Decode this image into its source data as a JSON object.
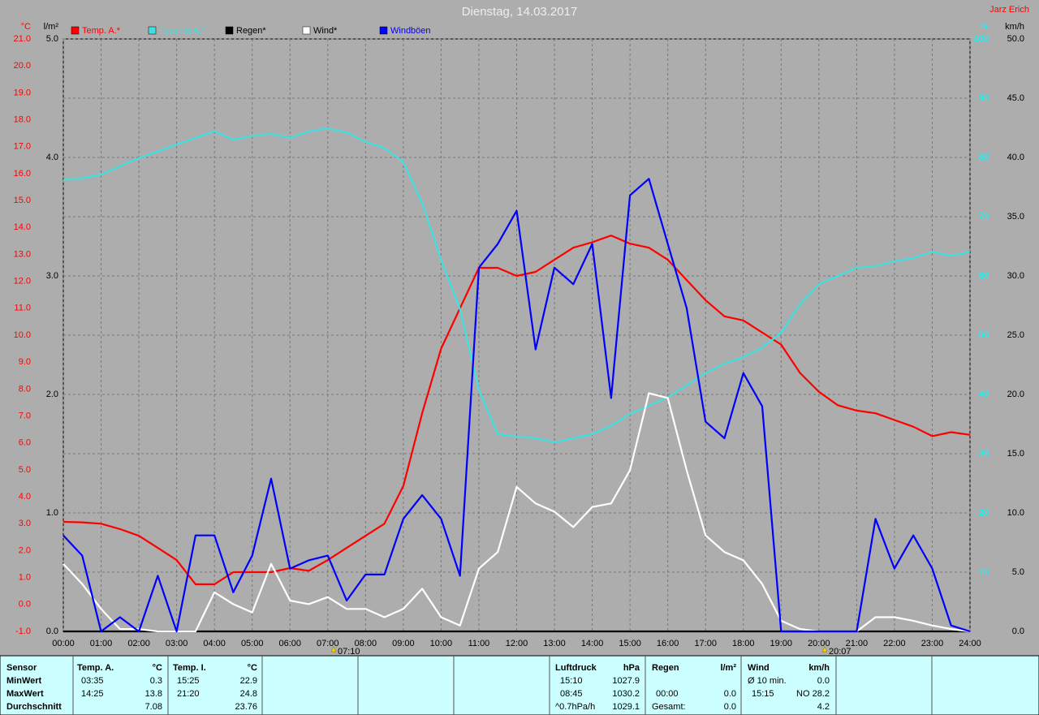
{
  "chart_data": {
    "type": "line",
    "title": "Dienstag, 14.03.2017",
    "author": "Jarz Erich",
    "x": [
      0,
      0.5,
      1,
      1.5,
      2,
      2.5,
      3,
      3.5,
      4,
      4.5,
      5,
      5.5,
      6,
      6.5,
      7,
      7.5,
      8,
      8.5,
      9,
      9.5,
      10,
      10.5,
      11,
      11.5,
      12,
      12.5,
      13,
      13.5,
      14,
      14.5,
      15,
      15.5,
      16,
      16.5,
      17,
      17.5,
      18,
      18.5,
      19,
      19.5,
      20,
      20.5,
      21,
      21.5,
      22,
      22.5,
      23,
      23.5,
      24
    ],
    "xlim": [
      0,
      24
    ],
    "xticks": [
      {
        "value": 0,
        "label": "00:00"
      },
      {
        "value": 1,
        "label": "01:00"
      },
      {
        "value": 2,
        "label": "02:00"
      },
      {
        "value": 3,
        "label": "03:00"
      },
      {
        "value": 4,
        "label": "04:00"
      },
      {
        "value": 5,
        "label": "05:00"
      },
      {
        "value": 6,
        "label": "06:00"
      },
      {
        "value": 7,
        "label": "07:00"
      },
      {
        "value": 8,
        "label": "08:00"
      },
      {
        "value": 9,
        "label": "09:00"
      },
      {
        "value": 10,
        "label": "10:00"
      },
      {
        "value": 11,
        "label": "11:00"
      },
      {
        "value": 12,
        "label": "12:00"
      },
      {
        "value": 13,
        "label": "13:00"
      },
      {
        "value": 14,
        "label": "14:00"
      },
      {
        "value": 15,
        "label": "15:00"
      },
      {
        "value": 16,
        "label": "16:00"
      },
      {
        "value": 17,
        "label": "17:00"
      },
      {
        "value": 18,
        "label": "18:00"
      },
      {
        "value": 19,
        "label": "19:00"
      },
      {
        "value": 20,
        "label": "20:00"
      },
      {
        "value": 21,
        "label": "21:00"
      },
      {
        "value": 22,
        "label": "22:00"
      },
      {
        "value": 23,
        "label": "23:00"
      },
      {
        "value": 24,
        "label": "24:00"
      }
    ],
    "axes": {
      "temp": {
        "label": "°C",
        "color": "#ff0000",
        "lim": [
          -1,
          21
        ],
        "ticks": [
          {
            "value": -1,
            "label": "-1.0"
          },
          {
            "value": 0,
            "label": "0.0"
          },
          {
            "value": 1,
            "label": "1.0"
          },
          {
            "value": 2,
            "label": "2.0"
          },
          {
            "value": 3,
            "label": "3.0"
          },
          {
            "value": 4,
            "label": "4.0"
          },
          {
            "value": 5,
            "label": "5.0"
          },
          {
            "value": 6,
            "label": "6.0"
          },
          {
            "value": 7,
            "label": "7.0"
          },
          {
            "value": 8,
            "label": "8.0"
          },
          {
            "value": 9,
            "label": "9.0"
          },
          {
            "value": 10,
            "label": "10.0"
          },
          {
            "value": 11,
            "label": "11.0"
          },
          {
            "value": 12,
            "label": "12.0"
          },
          {
            "value": 13,
            "label": "13.0"
          },
          {
            "value": 14,
            "label": "14.0"
          },
          {
            "value": 15,
            "label": "15.0"
          },
          {
            "value": 16,
            "label": "16.0"
          },
          {
            "value": 17,
            "label": "17.0"
          },
          {
            "value": 18,
            "label": "18.0"
          },
          {
            "value": 19,
            "label": "19.0"
          },
          {
            "value": 20,
            "label": "20.0"
          },
          {
            "value": 21,
            "label": "21.0"
          }
        ]
      },
      "rain": {
        "label": "l/m²",
        "color": "#000000",
        "lim": [
          0,
          5
        ],
        "ticks": [
          {
            "value": 0,
            "label": "0.0"
          },
          {
            "value": 1,
            "label": "1.0"
          },
          {
            "value": 2,
            "label": "2.0"
          },
          {
            "value": 3,
            "label": "3.0"
          },
          {
            "value": 4,
            "label": "4.0"
          },
          {
            "value": 5,
            "label": "5.0"
          }
        ]
      },
      "humidity": {
        "label": "%",
        "color": "#00ffff",
        "lim": [
          0,
          100
        ],
        "ticks": [
          10,
          20,
          30,
          40,
          50,
          60,
          70,
          80,
          90,
          100
        ]
      },
      "wind": {
        "label": "km/h",
        "color": "#000000",
        "lim": [
          0,
          50
        ],
        "ticks": [
          {
            "value": 0,
            "label": "0.0"
          },
          {
            "value": 5,
            "label": "5.0"
          },
          {
            "value": 10,
            "label": "10.0"
          },
          {
            "value": 15,
            "label": "15.0"
          },
          {
            "value": 20,
            "label": "20.0"
          },
          {
            "value": 25,
            "label": "25.0"
          },
          {
            "value": 30,
            "label": "30.0"
          },
          {
            "value": 35,
            "label": "35.0"
          },
          {
            "value": 40,
            "label": "40.0"
          },
          {
            "value": 45,
            "label": "45.0"
          },
          {
            "value": 50,
            "label": "50.0"
          }
        ]
      }
    },
    "grid": true,
    "sun": [
      "07:10",
      "20:07"
    ],
    "series": [
      {
        "name": "Temp. A.*",
        "color": "#ff0000",
        "axis": "temp",
        "values": [
          3.07,
          3.05,
          3.0,
          2.8,
          2.55,
          2.1,
          1.65,
          0.75,
          0.75,
          1.2,
          1.2,
          1.2,
          1.35,
          1.25,
          1.65,
          2.1,
          2.55,
          3.0,
          4.4,
          7.1,
          9.5,
          11.0,
          12.5,
          12.5,
          12.2,
          12.35,
          12.8,
          13.25,
          13.45,
          13.7,
          13.4,
          13.25,
          12.8,
          12.05,
          11.3,
          10.7,
          10.55,
          10.1,
          9.65,
          8.6,
          7.9,
          7.4,
          7.2,
          7.1,
          6.85,
          6.6,
          6.25,
          6.4,
          6.3
        ]
      },
      {
        "name": "Feuchte A.*",
        "color": "#40e0e0",
        "axis": "humidity",
        "values": [
          76.2,
          76.5,
          77.1,
          78.5,
          79.9,
          81,
          82.2,
          83.3,
          84.4,
          83,
          83.6,
          84,
          83.3,
          84.4,
          84.9,
          84.2,
          82.6,
          81.6,
          79.2,
          72.3,
          62.7,
          54.4,
          40.8,
          33.3,
          32.9,
          32.6,
          31.9,
          32.6,
          33.3,
          34.7,
          36.7,
          38.1,
          39.5,
          41.5,
          43.6,
          45.2,
          46.3,
          47.9,
          50.4,
          55.2,
          58.6,
          60,
          61.4,
          61.6,
          62.5,
          63,
          64.1,
          63.4,
          64.1
        ]
      },
      {
        "name": "Regen*",
        "color": "#000000",
        "axis": "rain",
        "values": [
          0,
          0,
          0,
          0,
          0,
          0,
          0,
          0,
          0,
          0,
          0,
          0,
          0,
          0,
          0,
          0,
          0,
          0,
          0,
          0,
          0,
          0,
          0,
          0,
          0,
          0,
          0,
          0,
          0,
          0,
          0,
          0,
          0,
          0,
          0,
          0,
          0,
          0,
          0,
          0,
          0,
          0,
          0,
          0,
          0,
          0,
          0,
          0,
          0
        ]
      },
      {
        "name": "Wind*",
        "color": "#ffffff",
        "axis": "wind",
        "values": [
          5.7,
          4,
          1.9,
          0.2,
          0.2,
          0,
          0,
          0,
          3.3,
          2.3,
          1.6,
          5.7,
          2.6,
          2.3,
          2.9,
          1.9,
          1.9,
          1.2,
          1.9,
          3.6,
          1.2,
          0.5,
          5.3,
          6.7,
          12.2,
          10.8,
          10.1,
          8.8,
          10.5,
          10.8,
          13.6,
          20.1,
          19.7,
          13.6,
          8.1,
          6.7,
          6,
          4,
          0.9,
          0.2,
          0,
          0,
          0,
          1.2,
          1.2,
          0.9,
          0.5,
          0.2,
          0
        ]
      },
      {
        "name": "Windböen",
        "color": "#0000ff",
        "axis": "wind",
        "values": [
          8.1,
          6.4,
          0,
          1.2,
          0,
          4.7,
          0,
          8.1,
          8.1,
          3.3,
          6.4,
          12.9,
          5.3,
          6,
          6.4,
          2.6,
          4.8,
          4.8,
          9.5,
          11.5,
          9.5,
          4.7,
          30.7,
          32.7,
          35.5,
          23.8,
          30.7,
          29.3,
          32.7,
          19.7,
          36.8,
          38.2,
          32.7,
          27.3,
          17.7,
          16.3,
          21.8,
          19,
          0,
          0,
          0,
          0,
          0,
          9.5,
          5.3,
          8.1,
          5.3,
          0.5,
          0
        ]
      }
    ]
  },
  "table": {
    "header": {
      "sensor": "Sensor",
      "temp_a": [
        "Temp. A.",
        "°C"
      ],
      "temp_i": [
        "Temp. I.",
        "°C"
      ],
      "luftdruck": [
        "Luftdruck",
        "hPa"
      ],
      "regen": [
        "Regen",
        "l/m²"
      ],
      "wind": [
        "Wind",
        "km/h"
      ]
    },
    "min": {
      "label": "MinWert",
      "temp_a": [
        "03:35",
        "0.3"
      ],
      "temp_i": [
        "15:25",
        "22.9"
      ],
      "luftdruck": [
        "15:10",
        "1027.9"
      ],
      "wind": [
        "Ø 10 min.",
        "0.0"
      ]
    },
    "max": {
      "label": "MaxWert",
      "temp_a": [
        "14:25",
        "13.8"
      ],
      "temp_i": [
        "21:20",
        "24.8"
      ],
      "luftdruck": [
        "08:45",
        "1030.2"
      ],
      "regen": [
        "00:00",
        "0.0"
      ],
      "wind": [
        "15:15",
        "NO 28.2"
      ]
    },
    "avg": {
      "label": "Durchschnitt",
      "temp_a": [
        "7.08"
      ],
      "temp_i": [
        "23.76"
      ],
      "luftdruck": [
        "^0.7hPa/h",
        "1029.1"
      ],
      "regen": [
        "Gesamt:",
        "0.0"
      ],
      "wind": [
        "4.2"
      ]
    }
  }
}
